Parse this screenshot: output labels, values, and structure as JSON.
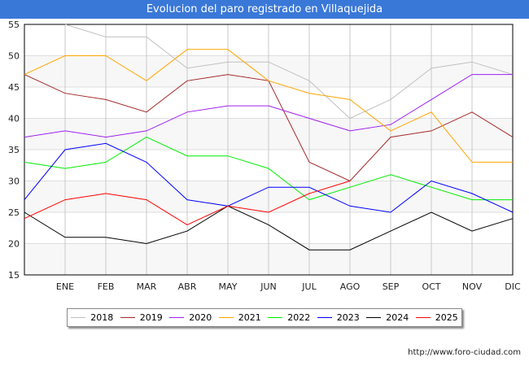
{
  "title": "Evolucion del paro registrado en Villaquejida",
  "url": "http://www.foro-ciudad.com",
  "chart_data": {
    "type": "line",
    "title": "Evolucion del paro registrado en Villaquejida",
    "categories": [
      "",
      "ENE",
      "FEB",
      "MAR",
      "ABR",
      "MAY",
      "JUN",
      "JUL",
      "AGO",
      "SEP",
      "OCT",
      "NOV",
      "DIC"
    ],
    "ylim": [
      15,
      55
    ],
    "yticks": [
      15,
      20,
      25,
      30,
      35,
      40,
      45,
      50,
      55
    ],
    "grid": true,
    "legend": "bottom",
    "series": [
      {
        "name": "2018",
        "color": "#c0c0c0",
        "values": [
          null,
          55,
          53,
          53,
          48,
          49,
          49,
          46,
          40,
          43,
          48,
          49,
          47
        ]
      },
      {
        "name": "2019",
        "color": "#a52a2a",
        "values": [
          47,
          44,
          43,
          41,
          46,
          47,
          46,
          33,
          30,
          37,
          38,
          41,
          37
        ]
      },
      {
        "name": "2020",
        "color": "#a020f0",
        "values": [
          37,
          38,
          37,
          38,
          41,
          42,
          42,
          40,
          38,
          39,
          43,
          47,
          47
        ]
      },
      {
        "name": "2021",
        "color": "#ffa500",
        "values": [
          47,
          50,
          50,
          46,
          51,
          51,
          46,
          44,
          43,
          38,
          41,
          33,
          33
        ]
      },
      {
        "name": "2022",
        "color": "#00ee00",
        "values": [
          33,
          32,
          33,
          37,
          34,
          34,
          32,
          27,
          29,
          31,
          29,
          27,
          27
        ]
      },
      {
        "name": "2023",
        "color": "#0000ff",
        "values": [
          27,
          35,
          36,
          33,
          27,
          26,
          29,
          29,
          26,
          25,
          30,
          28,
          25
        ]
      },
      {
        "name": "2024",
        "color": "#000000",
        "values": [
          25,
          21,
          21,
          20,
          22,
          26,
          23,
          19,
          19,
          22,
          25,
          22,
          24
        ]
      },
      {
        "name": "2025",
        "color": "#ff0000",
        "values": [
          24,
          27,
          28,
          27,
          23,
          26,
          25,
          28,
          30,
          null,
          null,
          null,
          null
        ]
      }
    ]
  }
}
